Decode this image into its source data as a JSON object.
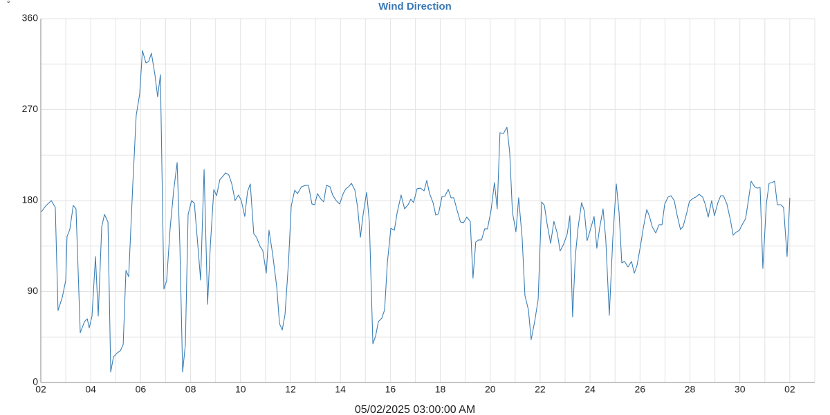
{
  "chart_data": {
    "type": "line",
    "title": "Wind Direction",
    "y_unit_label": "°",
    "xlabel": "05/02/2025 03:00:00 AM",
    "color": "#3b7fb6",
    "grid": true,
    "xlim": [
      0,
      31
    ],
    "ylim": [
      0,
      360
    ],
    "xticks": [
      {
        "value": 0,
        "label": "02"
      },
      {
        "value": 2,
        "label": "04"
      },
      {
        "value": 4,
        "label": "06"
      },
      {
        "value": 6,
        "label": "08"
      },
      {
        "value": 8,
        "label": "10"
      },
      {
        "value": 10,
        "label": "12"
      },
      {
        "value": 12,
        "label": "14"
      },
      {
        "value": 14,
        "label": "16"
      },
      {
        "value": 16,
        "label": "18"
      },
      {
        "value": 18,
        "label": "20"
      },
      {
        "value": 20,
        "label": "22"
      },
      {
        "value": 22,
        "label": "24"
      },
      {
        "value": 24,
        "label": "26"
      },
      {
        "value": 26,
        "label": "28"
      },
      {
        "value": 28,
        "label": "30"
      },
      {
        "value": 30,
        "label": "02"
      }
    ],
    "minor_xticks": [
      1,
      3,
      5,
      7,
      9,
      11,
      13,
      15,
      17,
      19,
      21,
      23,
      25,
      27,
      29,
      31
    ],
    "yticks": [
      0,
      90,
      180,
      270,
      360
    ],
    "minor_yticks": [
      45,
      135,
      225,
      315
    ],
    "x": [
      0.03,
      0.19,
      0.42,
      0.58,
      0.69,
      0.86,
      1.0,
      1.05,
      1.16,
      1.3,
      1.41,
      1.58,
      1.75,
      1.86,
      1.94,
      2.05,
      2.19,
      2.3,
      2.44,
      2.55,
      2.69,
      2.8,
      2.91,
      3.07,
      3.19,
      3.3,
      3.41,
      3.52,
      3.68,
      3.82,
      3.96,
      4.07,
      4.21,
      4.32,
      4.43,
      4.57,
      4.68,
      4.79,
      4.93,
      5.04,
      5.18,
      5.32,
      5.46,
      5.57,
      5.68,
      5.79,
      5.9,
      6.04,
      6.15,
      6.29,
      6.4,
      6.54,
      6.68,
      6.79,
      6.93,
      7.04,
      7.17,
      7.29,
      7.4,
      7.53,
      7.65,
      7.78,
      7.92,
      8.03,
      8.17,
      8.28,
      8.39,
      8.53,
      8.64,
      8.78,
      8.89,
      9.03,
      9.14,
      9.28,
      9.45,
      9.56,
      9.67,
      9.78,
      9.92,
      10.03,
      10.17,
      10.28,
      10.44,
      10.61,
      10.72,
      10.86,
      10.97,
      11.08,
      11.22,
      11.33,
      11.44,
      11.58,
      11.69,
      11.83,
      11.97,
      12.11,
      12.22,
      12.33,
      12.44,
      12.58,
      12.69,
      12.8,
      12.91,
      13.05,
      13.16,
      13.3,
      13.41,
      13.52,
      13.66,
      13.77,
      13.88,
      14.02,
      14.16,
      14.27,
      14.43,
      14.57,
      14.71,
      14.82,
      14.93,
      15.07,
      15.21,
      15.35,
      15.46,
      15.57,
      15.71,
      15.82,
      15.93,
      16.07,
      16.18,
      16.32,
      16.43,
      16.54,
      16.68,
      16.81,
      16.93,
      17.06,
      17.2,
      17.31,
      17.42,
      17.53,
      17.65,
      17.78,
      17.89,
      18.03,
      18.17,
      18.28,
      18.39,
      18.53,
      18.67,
      18.78,
      18.89,
      19.03,
      19.14,
      19.28,
      19.39,
      19.53,
      19.64,
      19.78,
      19.92,
      20.06,
      20.17,
      20.28,
      20.42,
      20.55,
      20.69,
      20.8,
      20.94,
      21.08,
      21.19,
      21.3,
      21.41,
      21.52,
      21.66,
      21.77,
      21.88,
      22.02,
      22.16,
      22.27,
      22.38,
      22.52,
      22.63,
      22.77,
      22.91,
      23.05,
      23.16,
      23.27,
      23.38,
      23.52,
      23.66,
      23.77,
      23.88,
      24.02,
      24.13,
      24.27,
      24.38,
      24.49,
      24.63,
      24.76,
      24.88,
      24.99,
      25.12,
      25.24,
      25.37,
      25.48,
      25.62,
      25.73,
      25.87,
      25.98,
      26.12,
      26.23,
      26.37,
      26.51,
      26.62,
      26.73,
      26.87,
      26.98,
      27.12,
      27.23,
      27.34,
      27.48,
      27.62,
      27.73,
      27.84,
      27.98,
      28.09,
      28.23,
      28.34,
      28.45,
      28.59,
      28.7,
      28.81,
      28.92,
      29.06,
      29.17,
      29.28,
      29.39,
      29.5,
      29.64,
      29.75,
      29.89,
      30.0
    ],
    "values": [
      169.1,
      174.5,
      180.0,
      173.2,
      71.2,
      84.2,
      101.3,
      144.4,
      151.3,
      175.2,
      171.8,
      49.3,
      60.2,
      63.0,
      54.1,
      65.7,
      124.6,
      65.7,
      154.0,
      166.3,
      158.8,
      10.3,
      25.3,
      29.4,
      31.5,
      37.6,
      110.9,
      104.7,
      193.7,
      264.2,
      285.4,
      328.6,
      316.2,
      317.6,
      325.8,
      304.6,
      282.7,
      304.6,
      92.4,
      100.6,
      152.6,
      189.6,
      217.7,
      135.5,
      10.3,
      37.6,
      166.3,
      180.0,
      177.3,
      135.5,
      101.3,
      210.8,
      77.3,
      135.5,
      191.0,
      184.8,
      200.6,
      204.0,
      207.4,
      205.4,
      196.5,
      180.0,
      185.5,
      180.0,
      164.3,
      188.9,
      196.5,
      147.2,
      143.7,
      134.8,
      130.7,
      108.2,
      150.6,
      128.0,
      94.5,
      58.2,
      52.0,
      67.1,
      118.4,
      174.5,
      190.3,
      186.9,
      193.7,
      195.1,
      195.1,
      176.6,
      175.9,
      186.9,
      181.4,
      178.7,
      195.1,
      193.7,
      185.5,
      180.0,
      176.6,
      186.9,
      191.7,
      193.7,
      197.1,
      190.3,
      173.2,
      143.7,
      166.3,
      188.2,
      158.8,
      38.3,
      45.9,
      60.2,
      63.7,
      71.9,
      118.4,
      152.6,
      150.6,
      167.7,
      185.5,
      171.8,
      175.9,
      181.4,
      178.0,
      191.7,
      192.3,
      189.6,
      199.9,
      186.9,
      178.0,
      165.6,
      167.0,
      184.1,
      184.1,
      191.0,
      182.8,
      182.8,
      169.8,
      158.8,
      158.1,
      163.6,
      159.5,
      103.4,
      139.0,
      141.0,
      141.0,
      152.0,
      152.0,
      169.8,
      197.8,
      171.8,
      247.1,
      246.4,
      252.6,
      227.9,
      168.4,
      149.2,
      182.8,
      142.4,
      86.2,
      71.9,
      42.4,
      60.2,
      82.1,
      178.7,
      175.2,
      156.8,
      137.6,
      159.5,
      147.2,
      130.1,
      136.9,
      146.5,
      165.0,
      65.0,
      125.3,
      153.3,
      178.0,
      169.8,
      140.3,
      152.0,
      164.3,
      132.8,
      152.6,
      171.8,
      141.0,
      66.4,
      142.4,
      196.5,
      168.4,
      118.4,
      119.8,
      114.3,
      119.8,
      108.2,
      115.7,
      135.5,
      152.6,
      171.1,
      164.3,
      154.0,
      147.9,
      156.1,
      156.1,
      176.6,
      183.4,
      184.8,
      180.0,
      166.3,
      151.3,
      154.7,
      167.7,
      179.3,
      182.1,
      183.4,
      186.2,
      183.4,
      175.9,
      163.6,
      180.0,
      165.0,
      178.0,
      184.8,
      184.8,
      176.6,
      160.9,
      145.8,
      148.5,
      150.6,
      156.1,
      162.2,
      180.0,
      199.2,
      193.7,
      192.3,
      193.0,
      112.9,
      176.6,
      197.1,
      197.8,
      199.2,
      175.9,
      175.9,
      173.2,
      124.6,
      182.8
    ]
  }
}
